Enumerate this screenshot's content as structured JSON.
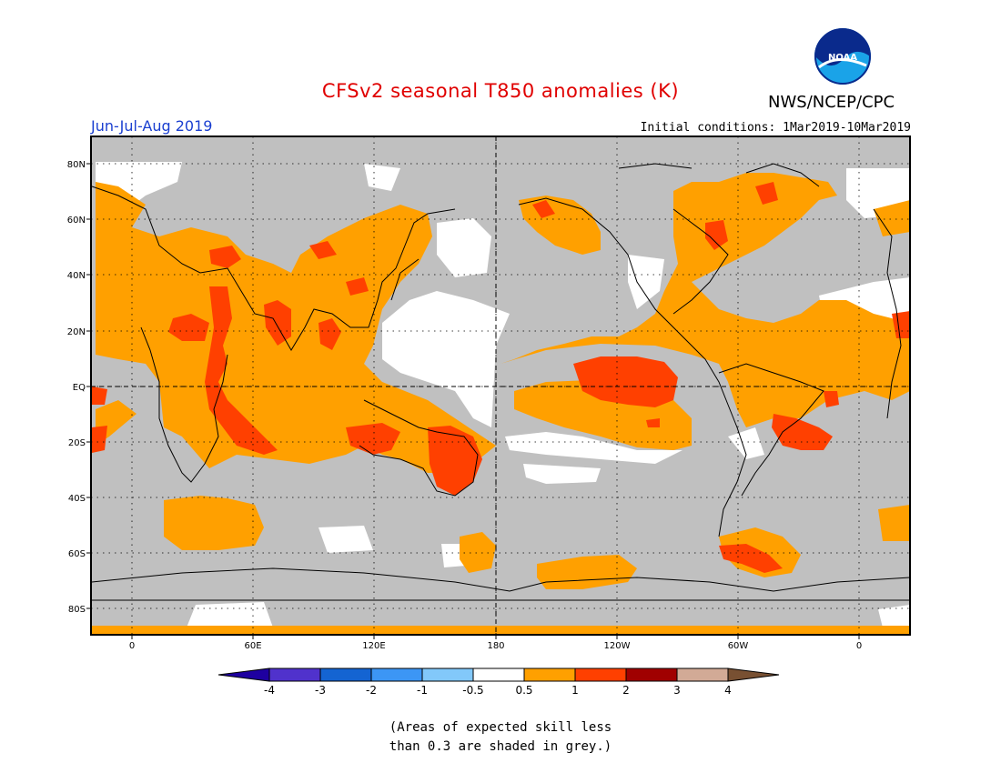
{
  "header": {
    "title": "CFSv2 seasonal T850 anomalies (K)",
    "agency": "NWS/NCEP/CPC",
    "logo_text": "NOAA",
    "season": "Jun-Jul-Aug 2019",
    "initial_conditions": "Initial conditions: 1Mar2019-10Mar2019"
  },
  "map": {
    "lat_labels": [
      "80N",
      "60N",
      "40N",
      "20N",
      "EQ",
      "20S",
      "40S",
      "60S",
      "80S"
    ],
    "lon_labels": [
      "0",
      "60E",
      "120E",
      "180",
      "120W",
      "60W",
      "0"
    ],
    "colors": {
      "grey_low_skill": "#c0c0c0",
      "anom_0_5_to_1": "#ffa000",
      "anom_1_to_2": "#ff4000",
      "neutral": "#ffffff",
      "border": "#000000"
    }
  },
  "colorbar": {
    "labels": [
      "-4",
      "-3",
      "-2",
      "-1",
      "-0.5",
      "0.5",
      "1",
      "2",
      "3",
      "4"
    ],
    "colors": [
      "#1e00a0",
      "#5032cc",
      "#1464d2",
      "#3c96f5",
      "#82c8fa",
      "#ffffff",
      "#ffa000",
      "#ff4000",
      "#a00000",
      "#d2aa96",
      "#785032"
    ]
  },
  "footnote": {
    "line1": "(Areas of expected skill less",
    "line2": "than 0.3 are shaded in grey.)"
  }
}
